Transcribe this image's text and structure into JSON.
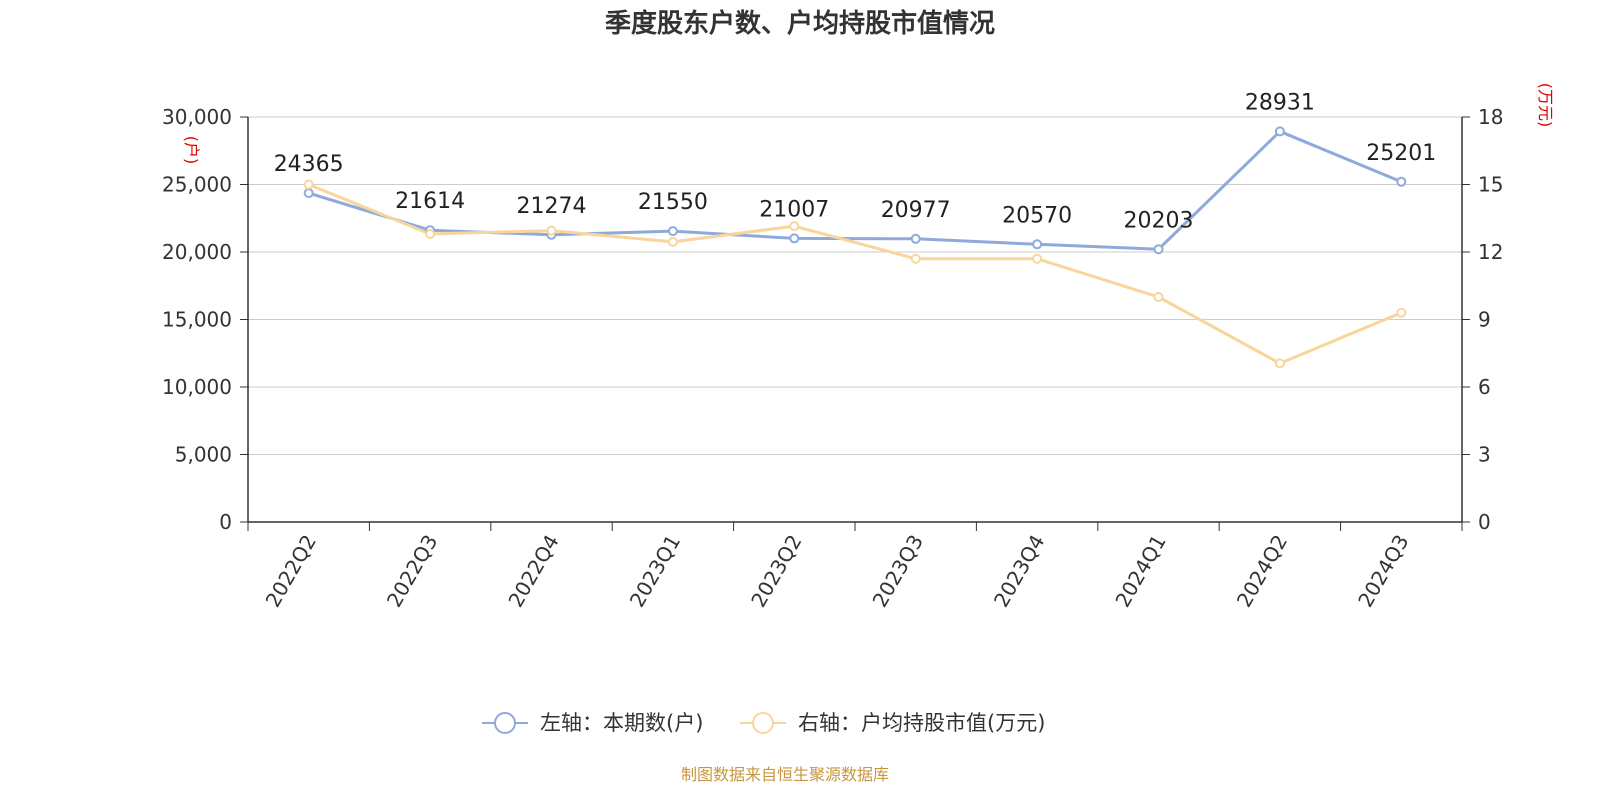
{
  "chart_data": {
    "type": "line",
    "title": "季度股东户数、户均持股市值情况",
    "categories": [
      "2022Q2",
      "2022Q3",
      "2022Q4",
      "2023Q1",
      "2023Q2",
      "2023Q3",
      "2023Q4",
      "2024Q1",
      "2024Q2",
      "2024Q3"
    ],
    "left_axis": {
      "unit": "(户)",
      "ylim": [
        0,
        30000
      ],
      "ticks": [
        0,
        5000,
        10000,
        15000,
        20000,
        25000,
        30000
      ],
      "tick_labels": [
        "0",
        "5,000",
        "10,000",
        "15,000",
        "20,000",
        "25,000",
        "30,000"
      ]
    },
    "right_axis": {
      "unit": "(万元)",
      "ylim": [
        0,
        18
      ],
      "ticks": [
        0,
        3,
        6,
        9,
        12,
        15,
        18
      ],
      "tick_labels": [
        "0",
        "3",
        "6",
        "9",
        "12",
        "15",
        "18"
      ]
    },
    "series": [
      {
        "name": "左轴：本期数(户)",
        "axis": "left",
        "color": "#8eaadb",
        "values": [
          24365,
          21614,
          21274,
          21550,
          21007,
          20977,
          20570,
          20203,
          28931,
          25201
        ],
        "data_labels": [
          "24365",
          "21614",
          "21274",
          "21550",
          "21007",
          "20977",
          "20570",
          "20203",
          "28931",
          "25201"
        ]
      },
      {
        "name": "右轴：户均持股市值(万元)",
        "axis": "right",
        "color": "#f9d59b",
        "values": [
          15.0,
          12.8,
          12.95,
          12.45,
          13.15,
          11.7,
          11.7,
          10.0,
          7.05,
          9.3
        ]
      }
    ],
    "grid": true,
    "legend_position": "bottom-center",
    "unit_color": "#e00000"
  },
  "source_note": "制图数据来自恒生聚源数据库",
  "source_color": "#c8963c"
}
